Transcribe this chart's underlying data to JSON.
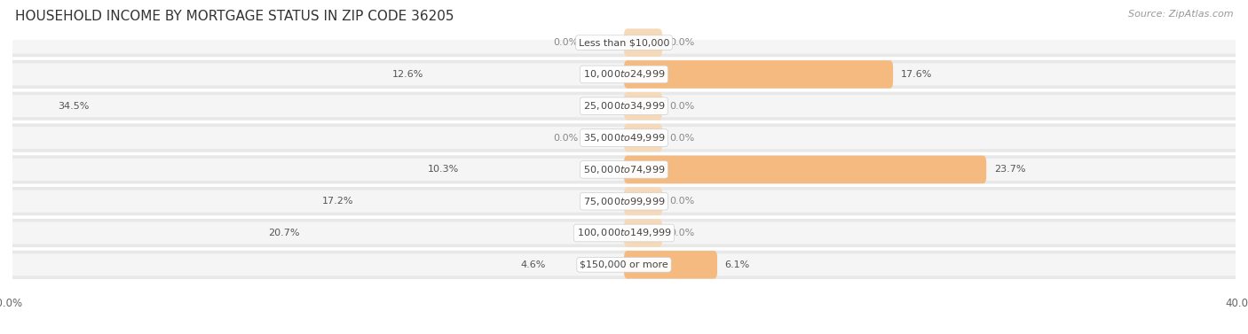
{
  "title": "HOUSEHOLD INCOME BY MORTGAGE STATUS IN ZIP CODE 36205",
  "source": "Source: ZipAtlas.com",
  "categories": [
    "Less than $10,000",
    "$10,000 to $24,999",
    "$25,000 to $34,999",
    "$35,000 to $49,999",
    "$50,000 to $74,999",
    "$75,000 to $99,999",
    "$100,000 to $149,999",
    "$150,000 or more"
  ],
  "without_mortgage": [
    0.0,
    12.6,
    34.5,
    0.0,
    10.3,
    17.2,
    20.7,
    4.6
  ],
  "with_mortgage": [
    0.0,
    17.6,
    0.0,
    0.0,
    23.7,
    0.0,
    0.0,
    6.1
  ],
  "max_val": 40.0,
  "color_without": "#7BAFD4",
  "color_with": "#F5BA80",
  "color_without_light": "#B8D4E8",
  "color_with_light": "#F5D9B8",
  "row_bg_color": "#E8E8E8",
  "row_inner_color": "#F5F5F5",
  "title_fontsize": 11,
  "source_fontsize": 8,
  "label_fontsize": 8,
  "category_fontsize": 8,
  "legend_fontsize": 9,
  "axis_label_fontsize": 8.5
}
